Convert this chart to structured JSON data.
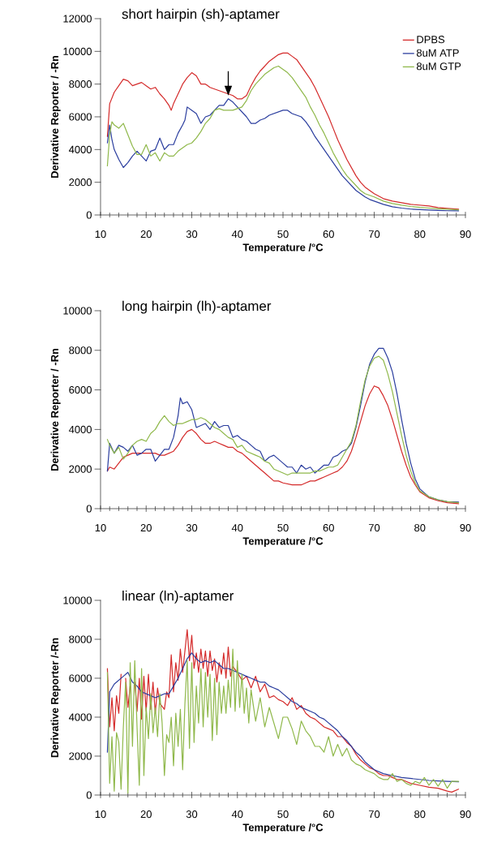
{
  "chart_data": [
    {
      "type": "line",
      "title": "short hairpin (sh)-aptamer",
      "xlabel": "Temperature /°C",
      "ylabel": "Derivative Reporter / -Rn",
      "xlim": [
        10,
        90
      ],
      "xticks": [
        10,
        20,
        30,
        40,
        50,
        60,
        70,
        80,
        90
      ],
      "ylim": [
        0,
        12000
      ],
      "yticks": [
        0,
        2000,
        4000,
        6000,
        8000,
        10000,
        12000
      ],
      "legend": "top right",
      "series": [
        {
          "name": "DPBS",
          "color": "#d42a2a",
          "x": [
            11.5,
            12,
            13,
            14,
            15,
            16,
            17,
            18,
            19,
            20,
            21,
            22,
            23,
            24,
            25,
            25.5,
            26,
            27,
            28,
            29,
            30,
            31,
            32,
            33,
            34,
            35,
            36,
            37,
            38,
            39,
            40,
            41,
            42,
            43,
            44,
            45,
            46,
            47,
            48,
            49,
            50,
            51,
            52,
            53,
            54,
            55,
            56,
            57,
            58,
            59,
            60,
            61,
            62,
            63,
            64,
            65,
            66,
            67,
            68,
            69,
            70,
            72,
            74,
            76,
            78,
            80,
            82,
            84,
            86,
            88.5
          ],
          "values": [
            4800,
            6800,
            7500,
            7900,
            8300,
            8200,
            7900,
            8000,
            8100,
            7900,
            7700,
            7800,
            7400,
            7100,
            6700,
            6400,
            6800,
            7400,
            8000,
            8400,
            8700,
            8500,
            8000,
            8000,
            7800,
            7700,
            7600,
            7500,
            7400,
            7300,
            7100,
            7100,
            7300,
            7900,
            8400,
            8800,
            9100,
            9400,
            9600,
            9800,
            9900,
            9900,
            9700,
            9500,
            9100,
            8700,
            8300,
            7800,
            7200,
            6600,
            6000,
            5300,
            4600,
            4000,
            3400,
            2900,
            2400,
            2000,
            1700,
            1500,
            1300,
            1000,
            850,
            750,
            650,
            600,
            550,
            450,
            400,
            350
          ]
        },
        {
          "name": "8uM ATP",
          "color": "#2a3d9e",
          "x": [
            11.5,
            12,
            12.5,
            13,
            14,
            15,
            16,
            17,
            18,
            19,
            20,
            21,
            22,
            23,
            24,
            25,
            26,
            27,
            28,
            28.5,
            29,
            30,
            31,
            32,
            33,
            34,
            35,
            36,
            37,
            38,
            39,
            40,
            41,
            42,
            43,
            44,
            45,
            46,
            47,
            48,
            49,
            50,
            51,
            52,
            53,
            54,
            55,
            56,
            57,
            58,
            59,
            60,
            61,
            62,
            63,
            64,
            65,
            66,
            67,
            68,
            69,
            70,
            72,
            74,
            76,
            78,
            80,
            82,
            84,
            86,
            88.5
          ],
          "values": [
            4400,
            5500,
            4600,
            4000,
            3400,
            2900,
            3200,
            3600,
            3900,
            3600,
            3300,
            3900,
            4000,
            4700,
            4000,
            4300,
            4300,
            5000,
            5500,
            5800,
            6600,
            6400,
            6200,
            5600,
            6000,
            6100,
            6400,
            6700,
            6700,
            7100,
            6900,
            6600,
            6300,
            6000,
            5600,
            5600,
            5800,
            5900,
            6100,
            6200,
            6300,
            6400,
            6400,
            6200,
            6100,
            6000,
            5700,
            5300,
            4800,
            4400,
            4000,
            3600,
            3200,
            2800,
            2400,
            2100,
            1800,
            1500,
            1300,
            1100,
            950,
            850,
            650,
            500,
            420,
            360,
            330,
            300,
            280,
            260,
            250
          ]
        },
        {
          "name": "8uM GTP",
          "color": "#8fb84a",
          "x": [
            11.5,
            12,
            12.5,
            13,
            14,
            15,
            16,
            17,
            18,
            19,
            20,
            21,
            22,
            23,
            24,
            25,
            26,
            27,
            28,
            29,
            30,
            31,
            32,
            33,
            34,
            35,
            36,
            37,
            38,
            39,
            40,
            41,
            42,
            43,
            44,
            45,
            46,
            47,
            48,
            49,
            50,
            51,
            52,
            53,
            54,
            55,
            56,
            57,
            58,
            59,
            60,
            61,
            62,
            63,
            64,
            65,
            66,
            67,
            68,
            70,
            72,
            74,
            76,
            78,
            80,
            82,
            84,
            86,
            88.5
          ],
          "values": [
            3000,
            4900,
            5700,
            5500,
            5300,
            5600,
            4900,
            4200,
            3700,
            3700,
            4300,
            3600,
            3800,
            3300,
            3800,
            3600,
            3600,
            3900,
            4100,
            4300,
            4400,
            4700,
            5100,
            5600,
            5900,
            6400,
            6500,
            6400,
            6400,
            6400,
            6500,
            6600,
            7000,
            7600,
            8000,
            8300,
            8600,
            8800,
            9000,
            9100,
            8900,
            8700,
            8400,
            8000,
            7600,
            7200,
            6600,
            6100,
            5500,
            5000,
            4400,
            3800,
            3300,
            2800,
            2400,
            2100,
            1800,
            1500,
            1300,
            1100,
            850,
            700,
            600,
            520,
            460,
            420,
            380,
            350,
            320
          ]
        }
      ]
    },
    {
      "type": "line",
      "title": "long hairpin (lh)-aptamer",
      "xlabel": "Temperature /°C",
      "ylabel": "Derivative Reporter / -Rn",
      "xlim": [
        10,
        90
      ],
      "xticks": [
        10,
        20,
        30,
        40,
        50,
        60,
        70,
        80,
        90
      ],
      "ylim": [
        0,
        10000
      ],
      "yticks": [
        0,
        2000,
        4000,
        6000,
        8000,
        10000
      ],
      "series": [
        {
          "color": "#d42a2a",
          "x": [
            11.5,
            12,
            13,
            14,
            15,
            16,
            17,
            18,
            19,
            20,
            21,
            22,
            23,
            24,
            25,
            26,
            27,
            28,
            29,
            30,
            31,
            32,
            33,
            34,
            35,
            36,
            37,
            38,
            39,
            40,
            41,
            42,
            43,
            44,
            45,
            46,
            47,
            48,
            49,
            50,
            51,
            52,
            53,
            54,
            55,
            56,
            57,
            58,
            59,
            60,
            61,
            62,
            63,
            64,
            65,
            66,
            67,
            68,
            69,
            70,
            71,
            72,
            73,
            74,
            75,
            76,
            77,
            78,
            79,
            80,
            82,
            84,
            86,
            88.5
          ],
          "values": [
            1900,
            2100,
            2000,
            2300,
            2600,
            2700,
            2800,
            2800,
            2800,
            2800,
            2800,
            2800,
            2700,
            2700,
            2800,
            2900,
            3200,
            3600,
            3900,
            4000,
            3800,
            3500,
            3300,
            3300,
            3400,
            3300,
            3200,
            3100,
            3100,
            2900,
            2800,
            2600,
            2400,
            2200,
            2000,
            1800,
            1600,
            1400,
            1400,
            1300,
            1250,
            1200,
            1200,
            1200,
            1300,
            1400,
            1400,
            1500,
            1600,
            1700,
            1800,
            1900,
            2100,
            2400,
            2900,
            3600,
            4400,
            5200,
            5800,
            6200,
            6100,
            5700,
            5200,
            4500,
            3700,
            2900,
            2200,
            1600,
            1200,
            850,
            550,
            400,
            300,
            250
          ]
        },
        {
          "color": "#2a3d9e",
          "x": [
            11.5,
            12,
            13,
            14,
            15,
            16,
            17,
            18,
            19,
            20,
            21,
            22,
            23,
            24,
            25,
            26,
            27,
            27.5,
            28,
            29,
            30,
            31,
            32,
            33,
            34,
            35,
            36,
            37,
            38,
            39,
            40,
            41,
            42,
            43,
            44,
            45,
            46,
            47,
            48,
            49,
            50,
            51,
            52,
            53,
            54,
            55,
            56,
            57,
            58,
            59,
            60,
            61,
            62,
            63,
            64,
            65,
            66,
            67,
            68,
            69,
            70,
            71,
            72,
            73,
            74,
            75,
            76,
            77,
            78,
            79,
            80,
            82,
            84,
            86,
            88.5
          ],
          "values": [
            1900,
            3300,
            2800,
            3200,
            3100,
            2900,
            3200,
            2700,
            2800,
            3000,
            3000,
            2400,
            2700,
            3000,
            3000,
            3600,
            4700,
            5600,
            5300,
            5400,
            5000,
            4100,
            4200,
            4300,
            4000,
            4400,
            4100,
            4200,
            4200,
            3600,
            3700,
            3500,
            3400,
            3200,
            3000,
            2900,
            2400,
            2600,
            2700,
            2500,
            2300,
            2100,
            2100,
            1800,
            2200,
            2000,
            2100,
            1800,
            2000,
            2200,
            2200,
            2600,
            2700,
            2900,
            3000,
            3300,
            4100,
            5200,
            6400,
            7300,
            7800,
            8100,
            8100,
            7600,
            6900,
            5800,
            4500,
            3300,
            2300,
            1500,
            1000,
            600,
            450,
            350,
            330
          ]
        },
        {
          "color": "#8fb84a",
          "x": [
            11.5,
            12,
            13,
            14,
            15,
            16,
            17,
            18,
            19,
            20,
            21,
            22,
            23,
            24,
            25,
            26,
            27,
            28,
            29,
            30,
            31,
            32,
            33,
            34,
            35,
            36,
            37,
            38,
            39,
            40,
            41,
            42,
            43,
            44,
            45,
            46,
            47,
            48,
            49,
            50,
            51,
            52,
            53,
            54,
            55,
            56,
            57,
            58,
            59,
            60,
            61,
            62,
            63,
            64,
            65,
            66,
            67,
            68,
            69,
            70,
            71,
            72,
            73,
            74,
            75,
            76,
            77,
            78,
            79,
            80,
            82,
            84,
            86,
            88.5
          ],
          "values": [
            3500,
            3200,
            2800,
            3100,
            2500,
            2800,
            3200,
            3400,
            3500,
            3400,
            3800,
            4000,
            4400,
            4700,
            4400,
            4200,
            4300,
            4300,
            4400,
            4500,
            4500,
            4600,
            4500,
            4300,
            4100,
            4000,
            3800,
            3600,
            3500,
            3100,
            3200,
            2900,
            2800,
            2700,
            2600,
            2400,
            2300,
            2000,
            1900,
            1800,
            1700,
            1800,
            1800,
            1800,
            1800,
            1800,
            1900,
            1900,
            2000,
            2100,
            2100,
            2200,
            2600,
            3000,
            3400,
            4200,
            5400,
            6500,
            7200,
            7600,
            7700,
            7500,
            6800,
            5900,
            4800,
            3700,
            2700,
            1900,
            1300,
            900,
            600,
            450,
            350,
            300
          ]
        }
      ]
    },
    {
      "type": "line",
      "title": "linear (ln)-aptamer",
      "xlabel": "Temperature /°C",
      "ylabel": "Derivative Reporter /-Rn",
      "xlim": [
        10,
        90
      ],
      "xticks": [
        10,
        20,
        30,
        40,
        50,
        60,
        70,
        80,
        90
      ],
      "ylim": [
        0,
        10000
      ],
      "yticks": [
        0,
        2000,
        4000,
        6000,
        8000,
        10000
      ],
      "series": [
        {
          "color": "#d42a2a",
          "x": [
            11.5,
            12,
            12.5,
            13,
            13.5,
            14,
            14.5,
            15,
            15.5,
            16,
            16.5,
            17,
            17.5,
            18,
            18.5,
            19,
            19.5,
            20,
            20.5,
            21,
            21.5,
            22,
            22.5,
            23,
            24,
            24.5,
            25,
            25.5,
            26,
            26.5,
            27,
            27.5,
            28,
            28.5,
            29,
            29.5,
            30,
            30.5,
            31,
            31.5,
            32,
            32.5,
            33,
            33.5,
            34,
            34.5,
            35,
            35.5,
            36,
            36.5,
            37,
            37.5,
            38,
            38.5,
            39,
            40,
            41,
            42,
            43,
            44,
            45,
            46,
            47,
            48,
            49,
            50,
            51,
            52,
            53,
            54,
            55,
            56,
            57,
            58,
            59,
            60,
            61,
            62,
            63,
            64,
            65,
            66,
            67,
            68,
            69,
            70,
            71,
            72,
            73,
            74,
            75,
            76,
            77,
            78,
            80,
            82,
            84,
            86,
            87,
            88.5
          ],
          "values": [
            6500,
            3500,
            5000,
            3300,
            5100,
            4200,
            6200,
            null,
            6000,
            4500,
            5600,
            null,
            5800,
            4300,
            6000,
            3900,
            6100,
            4300,
            6200,
            4400,
            5800,
            4200,
            5500,
            4700,
            4400,
            5300,
            5000,
            7200,
            5300,
            6800,
            5900,
            7500,
            6300,
            7400,
            8500,
            6900,
            8200,
            6500,
            7300,
            6300,
            7500,
            6500,
            7400,
            6100,
            7400,
            6400,
            7000,
            5800,
            6800,
            6200,
            7300,
            6000,
            7600,
            6100,
            6600,
            6300,
            5900,
            6100,
            5500,
            6100,
            5300,
            5700,
            5000,
            5100,
            4900,
            4800,
            4600,
            5000,
            4400,
            4600,
            4200,
            4000,
            3900,
            3700,
            3500,
            3400,
            3300,
            3000,
            3000,
            2700,
            2500,
            2100,
            1800,
            1600,
            1400,
            1300,
            1100,
            1000,
            1000,
            900,
            800,
            800,
            700,
            600,
            500,
            400,
            350,
            200,
            150,
            300
          ]
        },
        {
          "color": "#2a3d9e",
          "x": [
            11.5,
            12,
            13,
            14,
            15,
            16,
            17,
            18,
            19,
            20,
            21,
            22,
            23,
            24,
            25,
            26,
            27,
            28,
            29,
            30,
            31,
            32,
            33,
            34,
            35,
            36,
            37,
            38,
            39,
            40,
            41,
            42,
            43,
            44,
            45,
            46,
            47,
            48,
            49,
            50,
            51,
            52,
            53,
            54,
            55,
            56,
            57,
            58,
            59,
            60,
            61,
            62,
            63,
            64,
            65,
            66,
            67,
            68,
            69,
            70,
            72,
            74,
            76,
            78,
            80,
            82,
            84,
            86,
            88.5
          ],
          "values": [
            2200,
            5300,
            5700,
            5900,
            6100,
            6300,
            5800,
            5600,
            5300,
            5200,
            5100,
            5000,
            5100,
            5200,
            5200,
            5600,
            6000,
            6500,
            7000,
            7300,
            7000,
            6800,
            6900,
            6800,
            6900,
            6700,
            6500,
            6500,
            6400,
            6300,
            6200,
            6100,
            6000,
            5900,
            5800,
            5800,
            5600,
            5500,
            5400,
            5200,
            5000,
            4800,
            4700,
            4500,
            4400,
            4300,
            4200,
            4000,
            3900,
            3700,
            3500,
            3300,
            3000,
            2800,
            2500,
            2200,
            2000,
            1700,
            1500,
            1300,
            1100,
            1000,
            900,
            850,
            800,
            750,
            720,
            700,
            680
          ]
        },
        {
          "color": "#8fb84a",
          "x": [
            11.5,
            12,
            12.5,
            13,
            13.5,
            14,
            14.5,
            15,
            15.5,
            16,
            16.5,
            17,
            17.5,
            18,
            18.5,
            19,
            19.5,
            20,
            20.5,
            21,
            21.5,
            22,
            22.5,
            23,
            23.5,
            24,
            24.5,
            25,
            25.5,
            26,
            26.5,
            27,
            27.5,
            28,
            28.5,
            29,
            29.5,
            30,
            30.5,
            31,
            31.5,
            32,
            32.5,
            33,
            33.5,
            34,
            34.5,
            35,
            35.5,
            36,
            36.5,
            37,
            37.5,
            38,
            38.5,
            39,
            39.5,
            40,
            40.5,
            41,
            41.5,
            42,
            42.5,
            43,
            44,
            45,
            46,
            47,
            48,
            49,
            50,
            51,
            52,
            53,
            54,
            55,
            56,
            57,
            58,
            59,
            60,
            61,
            62,
            63,
            64,
            65,
            66,
            67,
            68,
            69,
            70,
            71,
            72,
            73,
            74,
            75,
            76,
            77,
            78,
            79,
            80,
            81,
            82,
            83,
            84,
            85,
            86,
            87,
            88.5
          ],
          "values": [
            6300,
            600,
            3000,
            200,
            3200,
            2700,
            300,
            3500,
            5800,
            100,
            6800,
            2500,
            6900,
            3500,
            500,
            6500,
            1000,
            4500,
            2900,
            5200,
            3200,
            4500,
            3000,
            5200,
            3700,
            1000,
            3100,
            2700,
            4000,
            1500,
            4200,
            2500,
            4400,
            1300,
            4700,
            6900,
            2400,
            6800,
            2700,
            5600,
            3700,
            6500,
            3500,
            6300,
            4000,
            6200,
            2800,
            6000,
            3100,
            5800,
            4200,
            5600,
            4200,
            5900,
            4500,
            7500,
            4300,
            6900,
            4500,
            6200,
            4200,
            5500,
            3700,
            5400,
            3800,
            5000,
            3500,
            4500,
            3700,
            2900,
            4000,
            4000,
            3400,
            2600,
            3800,
            3300,
            3000,
            2500,
            2500,
            2200,
            3000,
            2000,
            2600,
            2000,
            2400,
            1800,
            1600,
            1500,
            1300,
            1200,
            1100,
            900,
            800,
            800,
            1100,
            700,
            800,
            600,
            500,
            700,
            600,
            900,
            500,
            800,
            450,
            800,
            350,
            700,
            700
          ]
        }
      ]
    }
  ]
}
